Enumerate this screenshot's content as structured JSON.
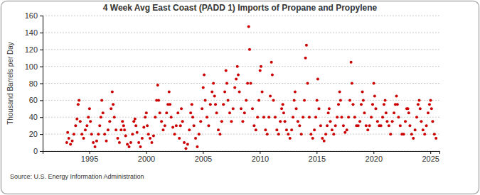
{
  "chart_data": {
    "type": "scatter",
    "title": "4 Week Avg East Coast (PADD 1) Imports of Propane and Propylene",
    "y_label": "Thousand Barrels per Day",
    "source": "Source: U.S. Energy Information Administration",
    "color": "#cc0000",
    "marker": "circle",
    "grid": true,
    "xlim": [
      1990.9,
      2025.8
    ],
    "xticks": [
      1995,
      2000,
      2005,
      2010,
      2015,
      2020,
      2025
    ],
    "ylim": [
      0,
      160
    ],
    "yticks": [
      0,
      20,
      40,
      60,
      80,
      100,
      120,
      140,
      160
    ],
    "x": [
      1993.02,
      1993.1,
      1993.2,
      1993.35,
      1993.5,
      1993.65,
      1993.8,
      1993.92,
      1994.02,
      1994.1,
      1994.2,
      1994.35,
      1994.5,
      1994.65,
      1994.8,
      1994.92,
      1995.02,
      1995.1,
      1995.2,
      1995.35,
      1995.5,
      1995.65,
      1995.8,
      1995.92,
      1996.02,
      1996.1,
      1996.2,
      1996.35,
      1996.5,
      1996.65,
      1996.8,
      1996.92,
      1997.02,
      1997.1,
      1997.2,
      1997.35,
      1997.5,
      1997.65,
      1997.8,
      1997.92,
      1998.02,
      1998.1,
      1998.2,
      1998.35,
      1998.5,
      1998.65,
      1998.8,
      1998.92,
      1999.02,
      1999.1,
      1999.2,
      1999.35,
      1999.5,
      1999.65,
      1999.8,
      1999.92,
      2000.02,
      2000.1,
      2000.2,
      2000.35,
      2000.5,
      2000.65,
      2000.8,
      2000.92,
      2001.02,
      2001.1,
      2001.2,
      2001.35,
      2001.5,
      2001.65,
      2001.8,
      2001.92,
      2002.02,
      2002.1,
      2002.2,
      2002.35,
      2002.5,
      2002.65,
      2002.8,
      2002.92,
      2003.02,
      2003.1,
      2003.2,
      2003.35,
      2003.5,
      2003.65,
      2003.8,
      2003.92,
      2004.02,
      2004.1,
      2004.2,
      2004.35,
      2004.5,
      2004.65,
      2004.8,
      2004.92,
      2005.02,
      2005.1,
      2005.2,
      2005.35,
      2005.5,
      2005.65,
      2005.8,
      2005.92,
      2006.02,
      2006.1,
      2006.2,
      2006.35,
      2006.5,
      2006.65,
      2006.8,
      2006.92,
      2007.02,
      2007.1,
      2007.2,
      2007.35,
      2007.5,
      2007.65,
      2007.8,
      2007.92,
      2008.02,
      2008.1,
      2008.2,
      2008.35,
      2008.5,
      2008.65,
      2008.8,
      2008.92,
      2009.02,
      2009.1,
      2009.2,
      2009.35,
      2009.5,
      2009.65,
      2009.8,
      2009.92,
      2010.02,
      2010.1,
      2010.2,
      2010.35,
      2010.5,
      2010.65,
      2010.8,
      2010.92,
      2011.02,
      2011.1,
      2011.2,
      2011.35,
      2011.5,
      2011.65,
      2011.8,
      2011.92,
      2012.02,
      2012.1,
      2012.2,
      2012.35,
      2012.5,
      2012.65,
      2012.8,
      2012.92,
      2013.02,
      2013.1,
      2013.2,
      2013.35,
      2013.5,
      2013.65,
      2013.8,
      2013.92,
      2014.02,
      2014.1,
      2014.2,
      2014.35,
      2014.5,
      2014.65,
      2014.8,
      2014.92,
      2015.02,
      2015.1,
      2015.2,
      2015.35,
      2015.5,
      2015.65,
      2015.8,
      2015.92,
      2016.02,
      2016.1,
      2016.2,
      2016.35,
      2016.5,
      2016.65,
      2016.8,
      2016.92,
      2017.02,
      2017.1,
      2017.2,
      2017.35,
      2017.5,
      2017.65,
      2017.8,
      2017.92,
      2018.02,
      2018.1,
      2018.2,
      2018.35,
      2018.5,
      2018.65,
      2018.8,
      2018.92,
      2019.02,
      2019.1,
      2019.2,
      2019.35,
      2019.5,
      2019.65,
      2019.8,
      2019.92,
      2020.02,
      2020.1,
      2020.2,
      2020.35,
      2020.5,
      2020.65,
      2020.8,
      2020.92,
      2021.02,
      2021.1,
      2021.2,
      2021.35,
      2021.5,
      2021.65,
      2021.8,
      2021.92,
      2022.02,
      2022.1,
      2022.2,
      2022.35,
      2022.5,
      2022.65,
      2022.8,
      2022.92,
      2023.02,
      2023.1,
      2023.2,
      2023.35,
      2023.5,
      2023.65,
      2023.8,
      2023.92,
      2024.02,
      2024.1,
      2024.2,
      2024.35,
      2024.5,
      2024.65,
      2024.8,
      2024.92,
      2025.02,
      2025.1,
      2025.2,
      2025.35,
      2025.5
    ],
    "values": [
      10,
      22,
      15,
      8,
      12,
      20,
      30,
      38,
      55,
      60,
      35,
      20,
      15,
      25,
      30,
      40,
      50,
      35,
      20,
      10,
      5,
      12,
      20,
      30,
      40,
      60,
      45,
      20,
      12,
      25,
      35,
      50,
      70,
      55,
      40,
      25,
      15,
      10,
      25,
      35,
      30,
      25,
      18,
      8,
      5,
      10,
      20,
      35,
      38,
      30,
      22,
      10,
      5,
      15,
      28,
      40,
      45,
      30,
      20,
      15,
      10,
      18,
      40,
      60,
      78,
      60,
      45,
      35,
      25,
      30,
      45,
      55,
      70,
      55,
      40,
      28,
      20,
      30,
      45,
      15,
      30,
      50,
      35,
      10,
      3,
      8,
      25,
      45,
      55,
      40,
      30,
      15,
      5,
      20,
      35,
      50,
      75,
      90,
      60,
      40,
      30,
      55,
      70,
      80,
      65,
      55,
      45,
      25,
      20,
      35,
      55,
      70,
      95,
      80,
      60,
      45,
      35,
      50,
      75,
      85,
      100,
      90,
      70,
      50,
      35,
      45,
      60,
      80,
      147,
      120,
      80,
      50,
      30,
      25,
      40,
      60,
      95,
      100,
      70,
      40,
      25,
      20,
      40,
      65,
      105,
      90,
      60,
      40,
      25,
      20,
      35,
      50,
      55,
      45,
      35,
      25,
      20,
      15,
      25,
      40,
      60,
      70,
      50,
      35,
      30,
      20,
      40,
      60,
      110,
      125,
      80,
      40,
      20,
      15,
      25,
      40,
      60,
      85,
      50,
      30,
      15,
      12,
      20,
      30,
      45,
      50,
      35,
      25,
      20,
      30,
      40,
      55,
      70,
      60,
      40,
      30,
      22,
      25,
      40,
      60,
      105,
      80,
      55,
      40,
      30,
      30,
      35,
      55,
      70,
      60,
      45,
      30,
      25,
      30,
      40,
      55,
      80,
      65,
      50,
      35,
      30,
      30,
      40,
      55,
      60,
      45,
      35,
      30,
      20,
      35,
      45,
      55,
      65,
      55,
      40,
      30,
      20,
      20,
      35,
      50,
      50,
      45,
      30,
      20,
      15,
      25,
      40,
      55,
      60,
      50,
      35,
      25,
      20,
      30,
      45,
      55,
      60,
      50,
      35,
      20,
      15
    ]
  }
}
